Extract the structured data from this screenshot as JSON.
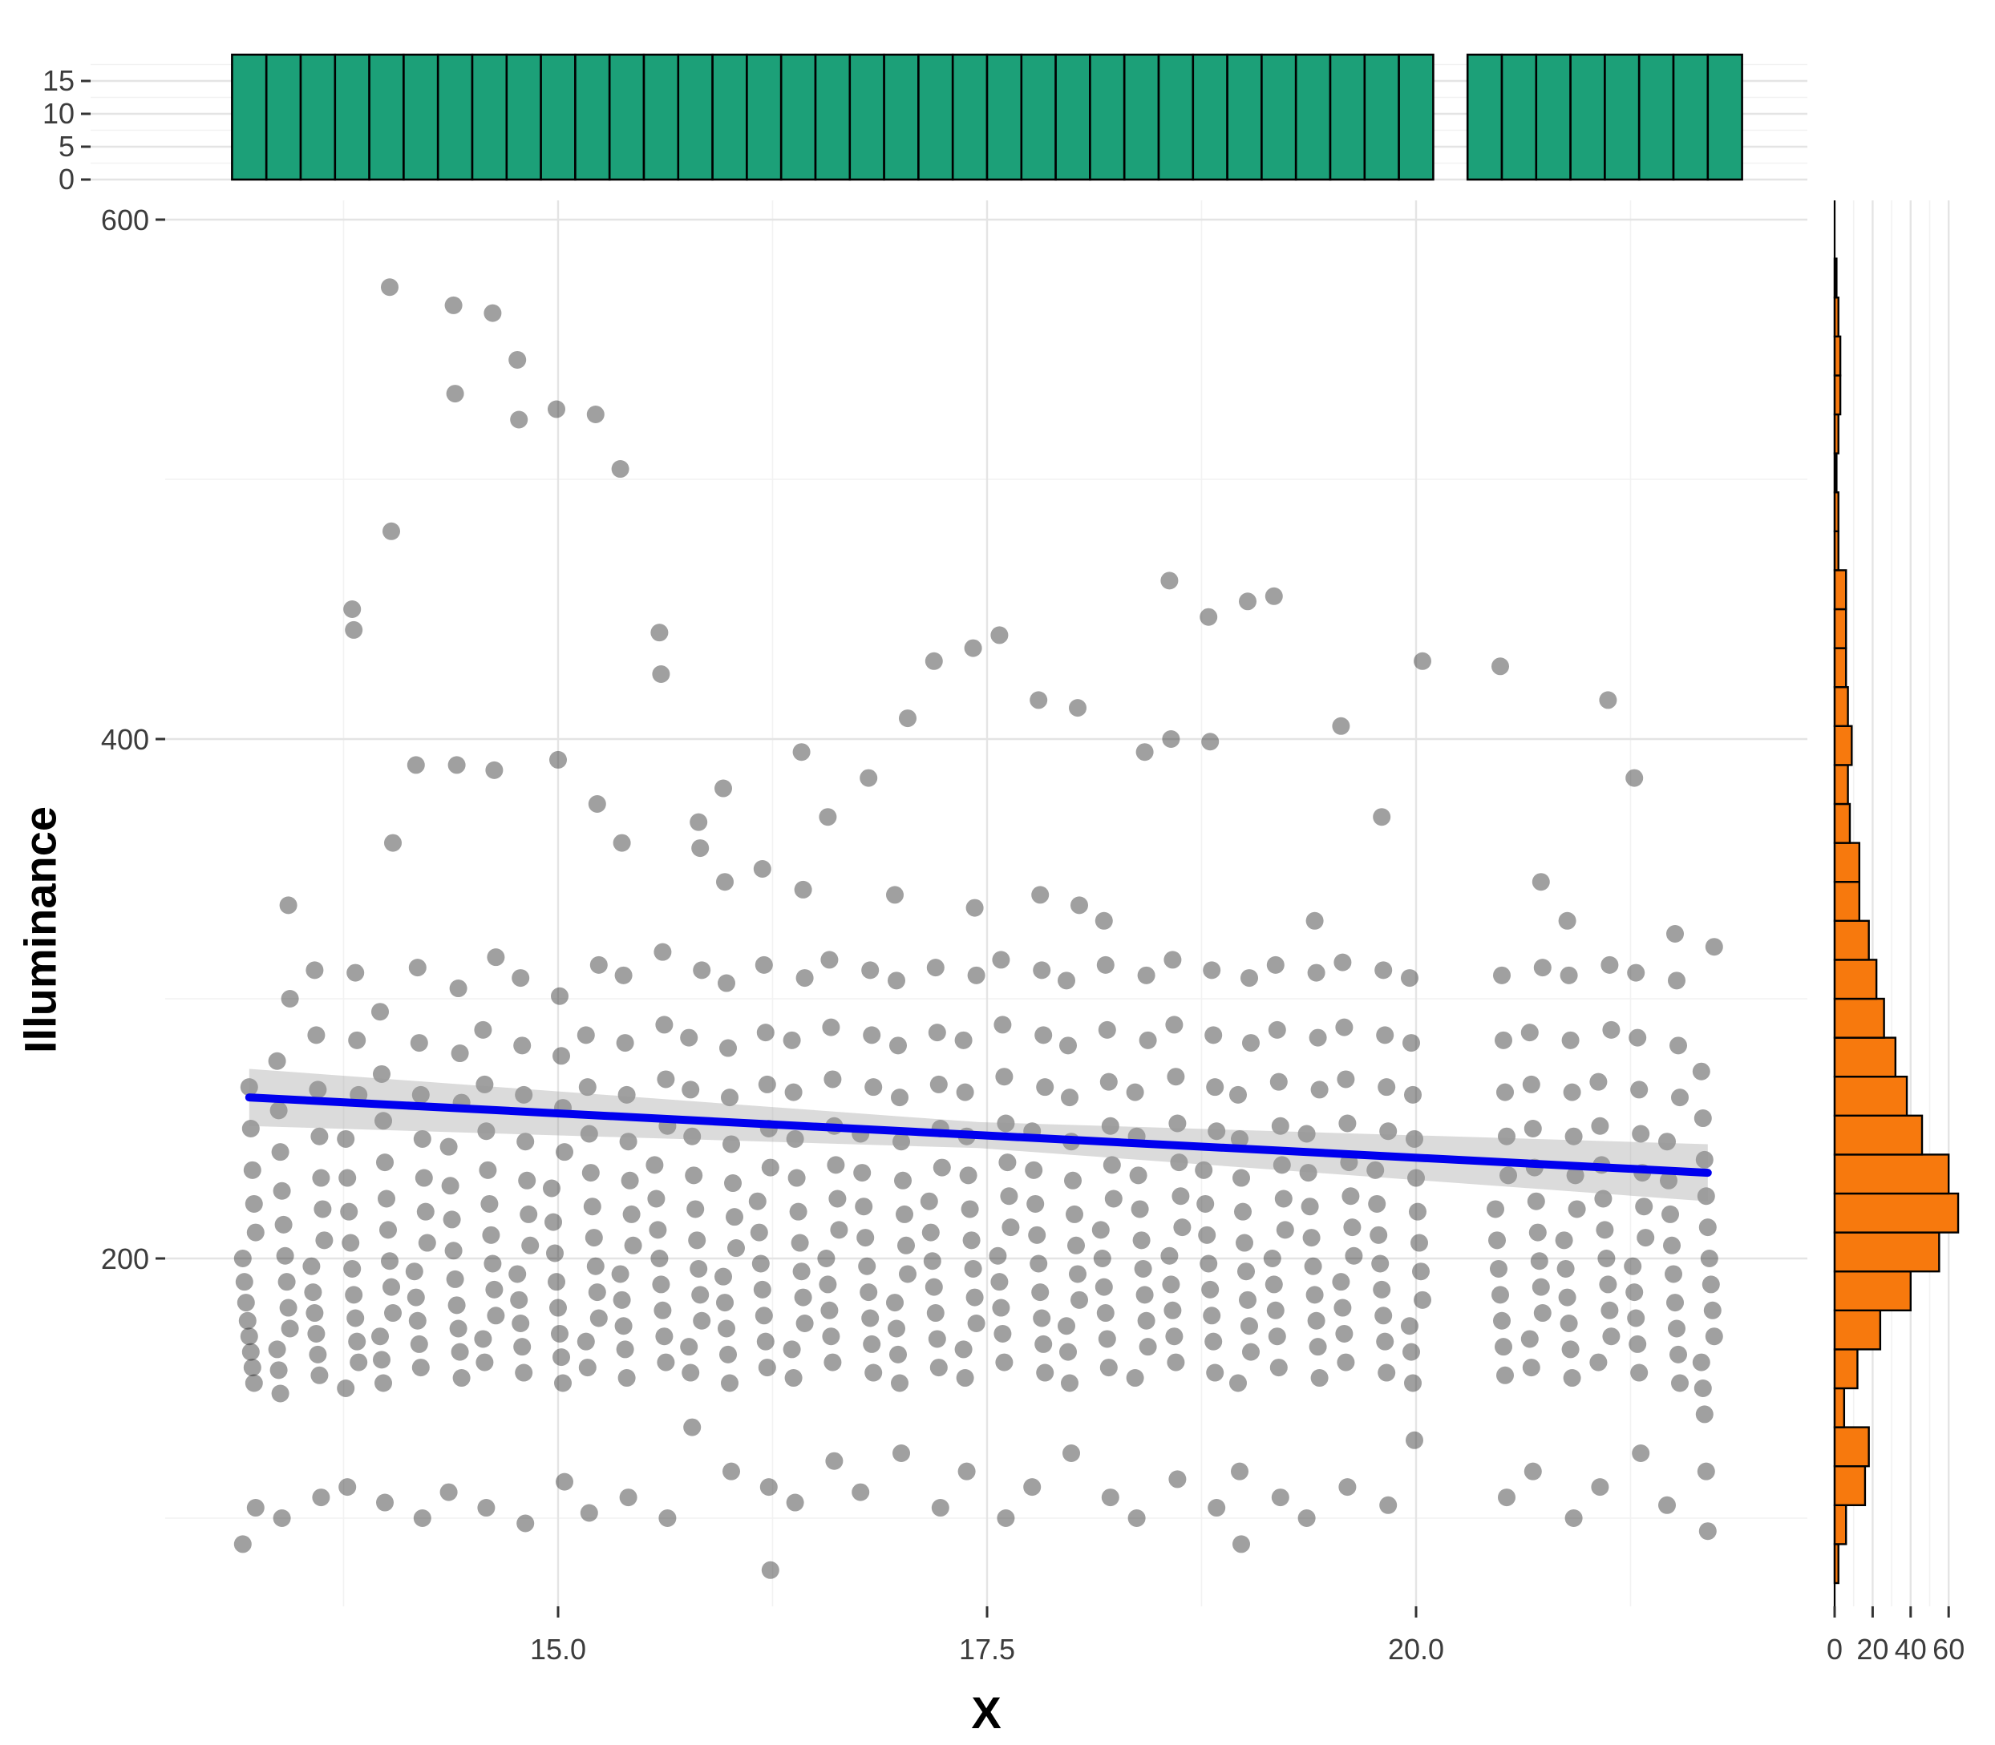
{
  "colors": {
    "background": "#ffffff",
    "grid_major": "#e4e4e4",
    "grid_minor": "#f2f2f2",
    "tick_text": "#3c3c3c",
    "tick_mark": "#333333",
    "axis_title": "#000000",
    "bar_stroke": "#000000",
    "top_hist_fill": "#1CA078",
    "right_hist_fill": "#F7790D",
    "point_fill": "#1c1c1c",
    "regression_line": "#0000EE",
    "ci_band": "#999999"
  },
  "chart_data": [
    {
      "id": "top-marginal-histogram",
      "type": "bar",
      "orientation": "vertical",
      "variable": "X",
      "bin_start": 13.1,
      "bin_width": 0.2,
      "counts": [
        19,
        19,
        19,
        19,
        19,
        19,
        19,
        19,
        19,
        19,
        19,
        19,
        19,
        19,
        19,
        19,
        19,
        19,
        19,
        19,
        19,
        19,
        19,
        19,
        19,
        19,
        19,
        19,
        19,
        19,
        19,
        19,
        19,
        19,
        19,
        0,
        19,
        19,
        19,
        19,
        19,
        19,
        19,
        19
      ],
      "y_ticks": [
        0,
        5,
        10,
        15
      ],
      "y_tick_labels": [
        "0",
        "5",
        "10",
        "15"
      ],
      "ylim": [
        0,
        20.6
      ],
      "grid": true
    },
    {
      "id": "main-scatter",
      "type": "scatter",
      "xlabel": "X",
      "ylabel": "Illuminance",
      "x_ticks": [
        15.0,
        17.5,
        20.0
      ],
      "x_tick_labels": [
        "15.0",
        "17.5",
        "20.0"
      ],
      "y_ticks": [
        200,
        400,
        600
      ],
      "y_tick_labels": [
        "200",
        "400",
        "600"
      ],
      "x_minor": [
        13.75,
        16.25,
        18.75,
        21.25
      ],
      "y_minor": [
        100,
        300,
        500
      ],
      "xlim": [
        12.71,
        22.28
      ],
      "ylim": [
        66,
        607
      ],
      "grid": true,
      "legend": "none",
      "point_radius_px": 11,
      "point_opacity": 0.42,
      "columns": [
        {
          "x": 13.2,
          "y": [
            90,
            104,
            152,
            158,
            164,
            170,
            176,
            183,
            191,
            200,
            210,
            221,
            234,
            250,
            266
          ]
        },
        {
          "x": 13.4,
          "y": [
            100,
            148,
            157,
            165,
            173,
            181,
            191,
            201,
            213,
            226,
            241,
            257,
            276,
            300,
            336
          ]
        },
        {
          "x": 13.6,
          "y": [
            108,
            155,
            163,
            171,
            179,
            187,
            197,
            207,
            219,
            231,
            247,
            265,
            286,
            311
          ]
        },
        {
          "x": 13.8,
          "y": [
            112,
            150,
            160,
            168,
            177,
            186,
            196,
            206,
            218,
            231,
            246,
            263,
            284,
            310,
            442,
            450
          ]
        },
        {
          "x": 14.0,
          "y": [
            106,
            152,
            161,
            170,
            179,
            189,
            199,
            211,
            223,
            237,
            253,
            271,
            295,
            360,
            480,
            574
          ]
        },
        {
          "x": 14.2,
          "y": [
            100,
            158,
            167,
            176,
            185,
            195,
            206,
            218,
            231,
            246,
            263,
            283,
            312,
            390
          ]
        },
        {
          "x": 14.4,
          "y": [
            110,
            154,
            164,
            173,
            182,
            192,
            203,
            215,
            228,
            243,
            260,
            279,
            304,
            390,
            533,
            567
          ]
        },
        {
          "x": 14.6,
          "y": [
            104,
            160,
            169,
            178,
            188,
            198,
            209,
            221,
            234,
            249,
            267,
            288,
            316,
            388,
            564
          ]
        },
        {
          "x": 14.8,
          "y": [
            98,
            156,
            166,
            175,
            184,
            194,
            205,
            217,
            230,
            245,
            263,
            282,
            308,
            523,
            546
          ]
        },
        {
          "x": 15.0,
          "y": [
            114,
            152,
            162,
            171,
            181,
            191,
            202,
            214,
            227,
            241,
            258,
            278,
            301,
            392,
            527
          ]
        },
        {
          "x": 15.2,
          "y": [
            102,
            158,
            168,
            177,
            187,
            197,
            208,
            220,
            233,
            248,
            266,
            286,
            313,
            375,
            525
          ]
        },
        {
          "x": 15.4,
          "y": [
            108,
            154,
            165,
            174,
            184,
            194,
            205,
            217,
            230,
            245,
            263,
            283,
            309,
            360,
            504
          ]
        },
        {
          "x": 15.6,
          "y": [
            100,
            160,
            170,
            180,
            190,
            200,
            211,
            223,
            236,
            251,
            269,
            290,
            318,
            425,
            441
          ]
        },
        {
          "x": 15.8,
          "y": [
            135,
            156,
            166,
            176,
            186,
            196,
            207,
            219,
            232,
            247,
            265,
            285,
            311,
            358,
            368
          ]
        },
        {
          "x": 16.0,
          "y": [
            118,
            152,
            163,
            173,
            183,
            193,
            204,
            216,
            229,
            244,
            262,
            281,
            306,
            345,
            381
          ]
        },
        {
          "x": 16.2,
          "y": [
            80,
            112,
            158,
            168,
            178,
            188,
            198,
            210,
            222,
            235,
            250,
            267,
            287,
            313,
            350
          ]
        },
        {
          "x": 16.4,
          "y": [
            106,
            154,
            165,
            175,
            185,
            195,
            206,
            218,
            231,
            246,
            264,
            284,
            308,
            342,
            395
          ]
        },
        {
          "x": 16.6,
          "y": [
            122,
            160,
            170,
            180,
            190,
            200,
            211,
            223,
            236,
            251,
            269,
            289,
            315,
            370
          ]
        },
        {
          "x": 16.8,
          "y": [
            110,
            156,
            167,
            177,
            187,
            197,
            208,
            220,
            233,
            248,
            266,
            286,
            311,
            385
          ]
        },
        {
          "x": 17.0,
          "y": [
            125,
            152,
            163,
            173,
            183,
            194,
            205,
            217,
            230,
            245,
            262,
            282,
            307,
            340,
            408
          ]
        },
        {
          "x": 17.2,
          "y": [
            104,
            158,
            169,
            179,
            189,
            199,
            210,
            222,
            235,
            250,
            267,
            287,
            312,
            430
          ]
        },
        {
          "x": 17.4,
          "y": [
            118,
            154,
            165,
            175,
            185,
            196,
            207,
            219,
            232,
            247,
            264,
            284,
            309,
            335,
            435
          ]
        },
        {
          "x": 17.6,
          "y": [
            100,
            160,
            171,
            181,
            191,
            201,
            212,
            224,
            237,
            252,
            270,
            290,
            315,
            440
          ]
        },
        {
          "x": 17.8,
          "y": [
            112,
            156,
            167,
            177,
            187,
            198,
            209,
            221,
            234,
            249,
            266,
            286,
            311,
            340,
            415
          ]
        },
        {
          "x": 18.0,
          "y": [
            125,
            152,
            164,
            174,
            184,
            194,
            205,
            217,
            230,
            245,
            262,
            282,
            307,
            336,
            412
          ]
        },
        {
          "x": 18.2,
          "y": [
            108,
            158,
            169,
            179,
            189,
            200,
            211,
            223,
            236,
            251,
            268,
            288,
            313,
            330
          ]
        },
        {
          "x": 18.4,
          "y": [
            100,
            154,
            166,
            176,
            186,
            196,
            207,
            219,
            232,
            247,
            264,
            284,
            309,
            395
          ]
        },
        {
          "x": 18.6,
          "y": [
            115,
            160,
            170,
            180,
            190,
            201,
            212,
            224,
            237,
            252,
            270,
            290,
            315,
            400,
            461
          ]
        },
        {
          "x": 18.8,
          "y": [
            104,
            156,
            168,
            178,
            188,
            198,
            209,
            221,
            234,
            249,
            266,
            286,
            311,
            399,
            447
          ]
        },
        {
          "x": 19.0,
          "y": [
            90,
            118,
            152,
            164,
            174,
            184,
            195,
            206,
            218,
            231,
            246,
            263,
            283,
            308,
            453
          ]
        },
        {
          "x": 19.2,
          "y": [
            108,
            158,
            170,
            180,
            190,
            200,
            211,
            223,
            236,
            251,
            268,
            288,
            313,
            455
          ]
        },
        {
          "x": 19.4,
          "y": [
            100,
            154,
            166,
            176,
            186,
            197,
            208,
            220,
            233,
            248,
            265,
            285,
            310,
            330
          ]
        },
        {
          "x": 19.6,
          "y": [
            112,
            160,
            171,
            181,
            191,
            201,
            212,
            224,
            237,
            252,
            269,
            289,
            314,
            405
          ]
        },
        {
          "x": 19.8,
          "y": [
            105,
            156,
            168,
            178,
            188,
            198,
            209,
            221,
            234,
            249,
            266,
            286,
            311,
            370
          ]
        },
        {
          "x": 20.0,
          "y": [
            130,
            152,
            164,
            174,
            184,
            195,
            206,
            218,
            231,
            246,
            263,
            283,
            308,
            430
          ]
        },
        {
          "x": 20.5,
          "y": [
            108,
            155,
            166,
            176,
            186,
            196,
            207,
            219,
            232,
            247,
            264,
            284,
            309,
            428
          ]
        },
        {
          "x": 20.7,
          "y": [
            118,
            158,
            169,
            179,
            189,
            199,
            210,
            222,
            235,
            250,
            267,
            287,
            312,
            345
          ]
        },
        {
          "x": 20.9,
          "y": [
            100,
            154,
            165,
            175,
            185,
            196,
            207,
            219,
            232,
            247,
            264,
            284,
            309,
            330
          ]
        },
        {
          "x": 21.1,
          "y": [
            112,
            160,
            170,
            180,
            190,
            200,
            211,
            223,
            236,
            251,
            268,
            288,
            313,
            415
          ]
        },
        {
          "x": 21.3,
          "y": [
            125,
            156,
            167,
            177,
            187,
            197,
            208,
            220,
            233,
            248,
            265,
            285,
            310,
            385
          ]
        },
        {
          "x": 21.5,
          "y": [
            105,
            152,
            163,
            173,
            183,
            194,
            205,
            217,
            230,
            245,
            262,
            282,
            307,
            325
          ]
        },
        {
          "x": 21.7,
          "y": [
            95,
            118,
            140,
            150,
            160,
            170,
            180,
            190,
            200,
            212,
            224,
            238,
            254,
            272,
            320
          ]
        }
      ],
      "regression": {
        "x": [
          13.2,
          21.7
        ],
        "y": [
          262,
          233
        ]
      },
      "ci_band": {
        "x": [
          13.2,
          17.45,
          21.7
        ],
        "upper": [
          273,
          252.5,
          244
        ],
        "lower": [
          251,
          242.5,
          222
        ],
        "opacity": 0.35
      }
    },
    {
      "id": "right-marginal-histogram",
      "type": "bar",
      "orientation": "horizontal",
      "variable": "Illuminance",
      "bin_start": 75,
      "bin_width": 15,
      "counts": [
        2,
        6,
        16,
        18,
        5,
        12,
        24,
        40,
        55,
        65,
        60,
        46,
        38,
        32,
        26,
        22,
        18,
        13,
        13,
        8,
        7,
        9,
        7,
        6,
        6,
        6,
        2,
        2,
        1,
        2,
        3,
        3,
        2,
        1
      ],
      "x_ticks": [
        0,
        20,
        40,
        60
      ],
      "x_tick_labels": [
        "0",
        "20",
        "40",
        "60"
      ],
      "x_minor": [
        10,
        30,
        50
      ],
      "xlim": [
        0,
        70
      ],
      "grid": true
    }
  ]
}
